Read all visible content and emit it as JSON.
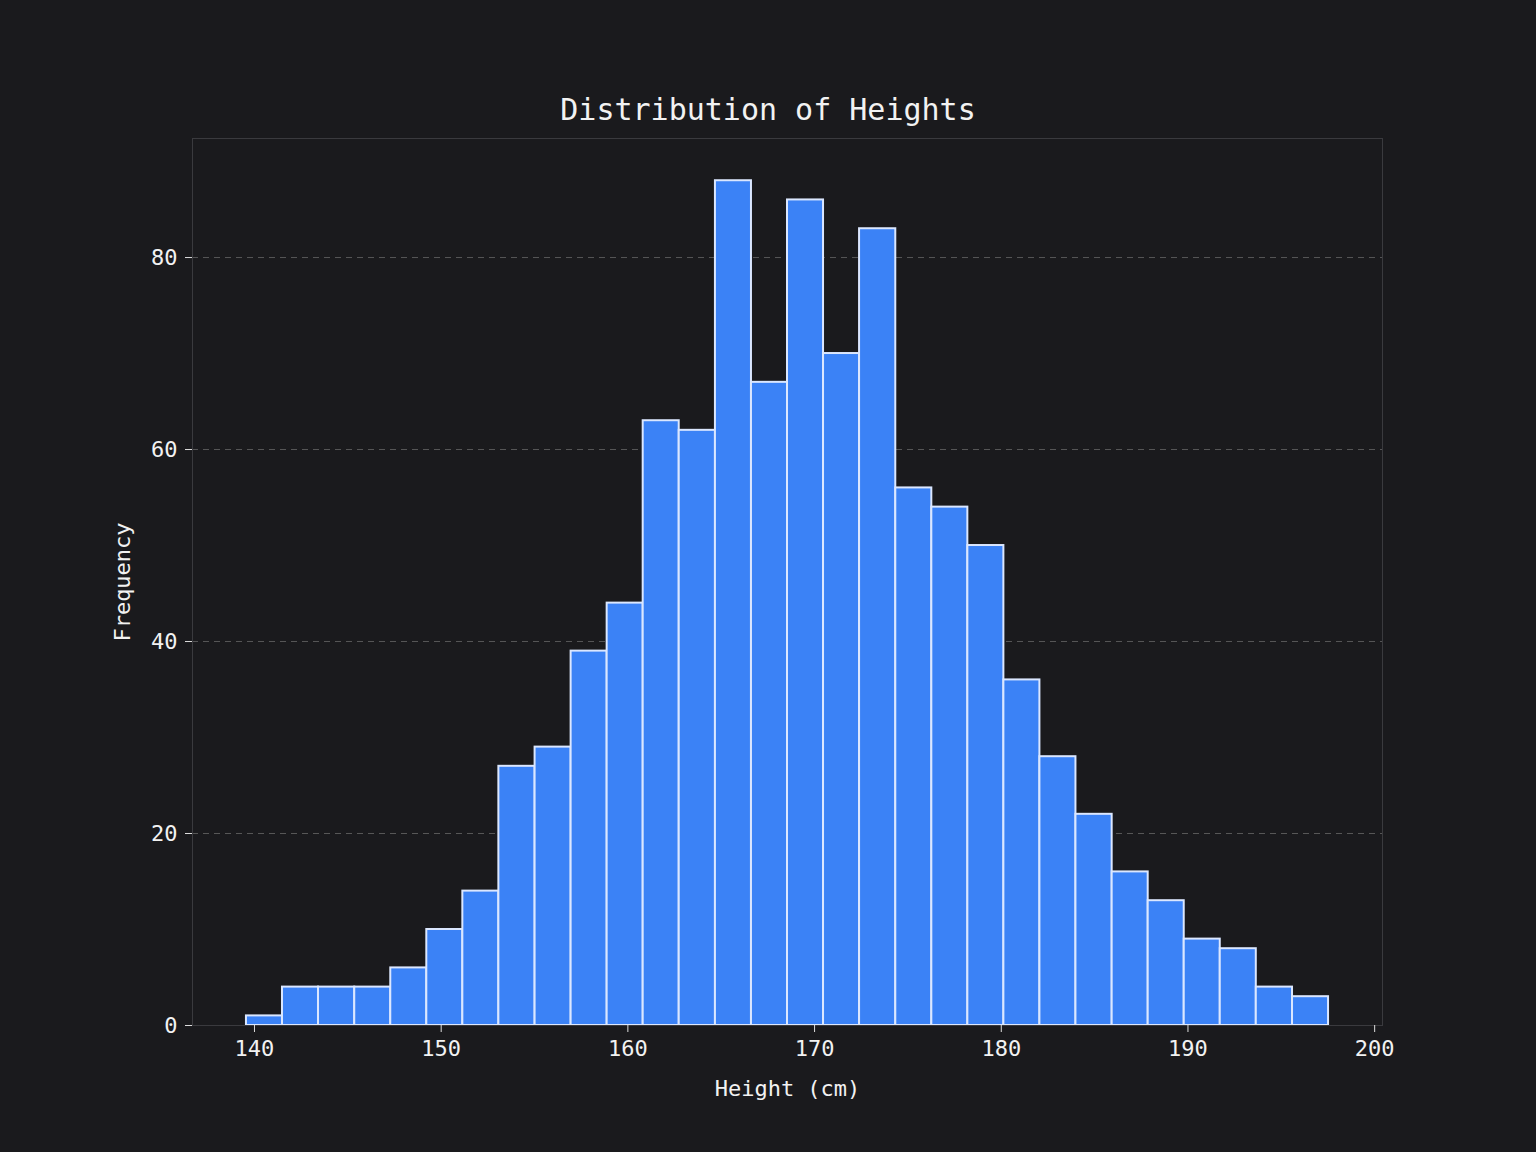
{
  "chart_data": {
    "type": "histogram",
    "title": "Distribution of Heights",
    "x_label": "Height (cm)",
    "y_label": "Frequency",
    "bins": [
      139.57,
      141.5,
      143.43,
      145.37,
      147.3,
      149.23,
      151.16,
      153.09,
      155.03,
      156.96,
      158.89,
      160.82,
      162.75,
      164.69,
      166.62,
      168.55,
      170.48,
      172.41,
      174.35,
      176.28,
      178.21,
      180.14,
      182.07,
      184.0,
      185.94,
      187.87,
      189.8,
      191.73,
      193.66,
      195.6,
      197.53
    ],
    "values": [
      1,
      4,
      4,
      4,
      6,
      10,
      14,
      27,
      29,
      39,
      44,
      63,
      62,
      88,
      67,
      86,
      70,
      83,
      56,
      54,
      50,
      36,
      28,
      22,
      16,
      13,
      9,
      8,
      4,
      3
    ],
    "color": "#3b82f6",
    "xlim": [
      136.68,
      200.42
    ],
    "xticks": [
      140,
      150,
      160,
      170,
      180,
      190,
      200
    ],
    "ylim": [
      0,
      92.4
    ],
    "yticks": [
      0,
      20,
      40,
      60,
      80
    ],
    "grid": true
  }
}
